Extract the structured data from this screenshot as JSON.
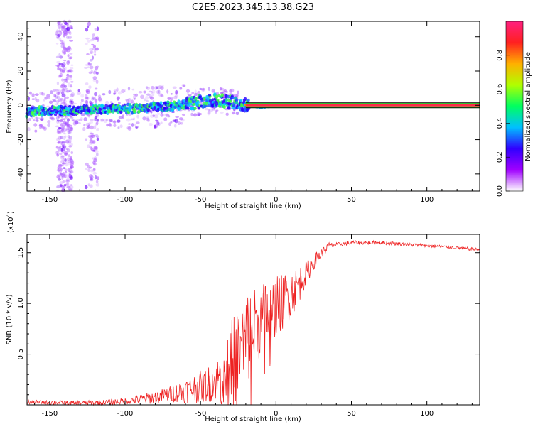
{
  "title": "C2E5.2023.345.13.38.G23",
  "chart_data": [
    {
      "type": "heatmap",
      "id": "spectrogram",
      "xlabel": "Height of straight line (km)",
      "ylabel": "Frequency (Hz)",
      "xlim": [
        -165,
        135
      ],
      "ylim": [
        -50,
        49
      ],
      "xticks": [
        -150,
        -100,
        -50,
        0,
        50,
        100
      ],
      "yticks": [
        -40,
        -20,
        0,
        20,
        40
      ],
      "colorbar": {
        "label": "Normalized spectral amplitude",
        "range": [
          0,
          1
        ],
        "ticks": [
          "0.0",
          "0.2",
          "0.4",
          "0.6",
          "0.8"
        ],
        "colors": [
          "#ffffff",
          "#a000ff",
          "#3000ff",
          "#00c0ff",
          "#00ff60",
          "#b0ff00",
          "#ffb000",
          "#ff2020",
          "#ff2080"
        ]
      },
      "ridge": [
        {
          "x": -165,
          "f": -4
        },
        {
          "x": -150,
          "f": -3
        },
        {
          "x": -130,
          "f": -3
        },
        {
          "x": -110,
          "f": -2
        },
        {
          "x": -95,
          "f": -2
        },
        {
          "x": -80,
          "f": -1
        },
        {
          "x": -65,
          "f": 0
        },
        {
          "x": -50,
          "f": 2
        },
        {
          "x": -40,
          "f": 3
        },
        {
          "x": -30,
          "f": 2
        },
        {
          "x": -25,
          "f": 1
        },
        {
          "x": -18,
          "f": 0
        },
        {
          "x": -10,
          "f": -1
        },
        {
          "x": 0,
          "f": 0
        },
        {
          "x": 135,
          "f": 0
        }
      ],
      "tone": {
        "frequency": 0,
        "x_start": -20,
        "x_end": 135
      }
    },
    {
      "type": "line",
      "id": "snr",
      "xlabel": "Height of straight line (km)",
      "ylabel": "SNR (10 * v/v)",
      "scale_label": "(x10^4)",
      "xlim": [
        -165,
        135
      ],
      "ylim": [
        0,
        1.68
      ],
      "xticks": [
        -150,
        -100,
        -50,
        0,
        50,
        100
      ],
      "yticks": [
        0.5,
        1.0,
        1.5
      ],
      "color": "#ee2222",
      "envelope": [
        {
          "x": -165,
          "y": 0.03
        },
        {
          "x": -140,
          "y": 0.02
        },
        {
          "x": -120,
          "y": 0.02
        },
        {
          "x": -100,
          "y": 0.04
        },
        {
          "x": -80,
          "y": 0.08
        },
        {
          "x": -60,
          "y": 0.15
        },
        {
          "x": -45,
          "y": 0.22
        },
        {
          "x": -35,
          "y": 0.3
        },
        {
          "x": -25,
          "y": 0.55
        },
        {
          "x": -15,
          "y": 0.8
        },
        {
          "x": -5,
          "y": 0.95
        },
        {
          "x": 5,
          "y": 1.05
        },
        {
          "x": 15,
          "y": 1.2
        },
        {
          "x": 25,
          "y": 1.42
        },
        {
          "x": 35,
          "y": 1.57
        },
        {
          "x": 50,
          "y": 1.6
        },
        {
          "x": 70,
          "y": 1.6
        },
        {
          "x": 100,
          "y": 1.57
        },
        {
          "x": 120,
          "y": 1.55
        },
        {
          "x": 135,
          "y": 1.53
        }
      ],
      "noise": [
        {
          "x": -165,
          "a": 0.02
        },
        {
          "x": -100,
          "a": 0.03
        },
        {
          "x": -70,
          "a": 0.08
        },
        {
          "x": -40,
          "a": 0.2
        },
        {
          "x": -30,
          "a": 0.45
        },
        {
          "x": -20,
          "a": 0.5
        },
        {
          "x": -10,
          "a": 0.35
        },
        {
          "x": 0,
          "a": 0.3
        },
        {
          "x": 10,
          "a": 0.25
        },
        {
          "x": 20,
          "a": 0.12
        },
        {
          "x": 30,
          "a": 0.05
        },
        {
          "x": 40,
          "a": 0.02
        },
        {
          "x": 135,
          "a": 0.015
        }
      ]
    }
  ]
}
